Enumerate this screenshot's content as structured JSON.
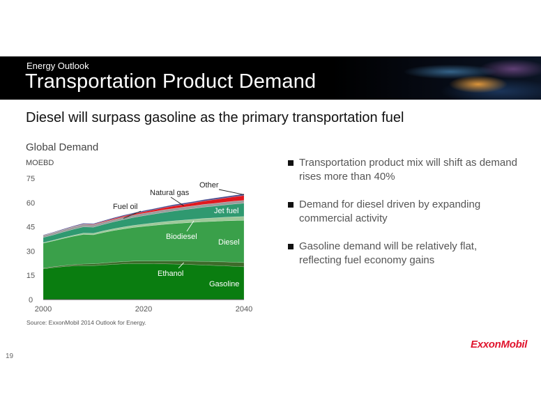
{
  "header": {
    "kicker": "Energy Outlook",
    "title": "Transportation Product Demand"
  },
  "subtitle": "Diesel will surpass gasoline as the primary transportation fuel",
  "bullets": [
    "Transportation product mix will shift as demand rises more than 40%",
    "Demand for diesel driven by expanding commercial activity",
    "Gasoline demand will be relatively flat, reflecting fuel economy gains"
  ],
  "source": "Source:  ExxonMobil 2014 Outlook for Energy.",
  "logo": "ExxonMobil",
  "page_number": "19",
  "chart_data": {
    "type": "area",
    "stacked": true,
    "title": "Global Demand",
    "ylabel": "MOEBD",
    "xlabel": "",
    "x": [
      2000,
      2002,
      2004,
      2006,
      2008,
      2010,
      2012,
      2014,
      2016,
      2018,
      2020,
      2022,
      2024,
      2026,
      2028,
      2030,
      2032,
      2034,
      2036,
      2038,
      2040
    ],
    "xticks": [
      2000,
      2020,
      2040
    ],
    "xlim": [
      2000,
      2040
    ],
    "yticks": [
      0,
      15,
      30,
      45,
      60,
      75
    ],
    "ylim": [
      0,
      75
    ],
    "grid": false,
    "series": [
      {
        "name": "Gasoline",
        "color": "#0a7d10",
        "values": [
          19,
          19.8,
          20.4,
          20.8,
          21,
          21,
          21.4,
          21.8,
          22.1,
          22.3,
          22.3,
          22.2,
          22.1,
          22,
          21.8,
          21.6,
          21.4,
          21.1,
          20.9,
          20.6,
          20.3
        ]
      },
      {
        "name": "Ethanol",
        "color": "#3d6b2a",
        "values": [
          0.4,
          0.5,
          0.6,
          0.8,
          1,
          1.1,
          1.2,
          1.3,
          1.4,
          1.5,
          1.6,
          1.7,
          1.8,
          1.9,
          2,
          2.1,
          2.2,
          2.3,
          2.4,
          2.5,
          2.6
        ]
      },
      {
        "name": "Diesel",
        "color": "#3aa04a",
        "values": [
          15.5,
          16,
          16.8,
          17.6,
          18.3,
          18,
          18.9,
          19.6,
          20.2,
          20.8,
          21.4,
          22,
          22.6,
          23.1,
          23.6,
          24.1,
          24.6,
          25,
          25.4,
          25.8,
          26.1
        ]
      },
      {
        "name": "Biodiesel",
        "color": "#9ec99a",
        "values": [
          0.3,
          0.4,
          0.5,
          0.6,
          0.8,
          0.9,
          1,
          1.1,
          1.2,
          1.3,
          1.4,
          1.5,
          1.6,
          1.7,
          1.8,
          1.9,
          2,
          2.1,
          2.2,
          2.3,
          2.4
        ]
      },
      {
        "name": "Jet fuel",
        "color": "#2f9970",
        "values": [
          3.2,
          3.3,
          3.5,
          3.7,
          3.9,
          3.8,
          4,
          4.3,
          4.6,
          4.9,
          5.2,
          5.5,
          5.8,
          6.1,
          6.4,
          6.7,
          7,
          7.3,
          7.6,
          7.9,
          8.2
        ]
      },
      {
        "name": "Fuel oil",
        "color": "#9c9c9c",
        "values": [
          1.2,
          1.3,
          1.3,
          1.4,
          1.5,
          1.4,
          1.4,
          1.4,
          1.5,
          1.5,
          1.5,
          1.5,
          1.6,
          1.6,
          1.6,
          1.6,
          1.7,
          1.7,
          1.7,
          1.8,
          1.8
        ]
      },
      {
        "name": "Natural gas",
        "color": "#e0181f",
        "values": [
          0.1,
          0.1,
          0.1,
          0.2,
          0.2,
          0.3,
          0.4,
          0.5,
          0.6,
          0.7,
          0.9,
          1.1,
          1.3,
          1.5,
          1.7,
          1.9,
          2.1,
          2.3,
          2.5,
          2.7,
          3
        ]
      },
      {
        "name": "Other",
        "color": "#4a4a8c",
        "values": [
          0.3,
          0.3,
          0.4,
          0.4,
          0.5,
          0.5,
          0.5,
          0.6,
          0.6,
          0.6,
          0.7,
          0.7,
          0.7,
          0.8,
          0.8,
          0.8,
          0.8,
          0.9,
          0.9,
          0.9,
          1
        ]
      }
    ]
  }
}
